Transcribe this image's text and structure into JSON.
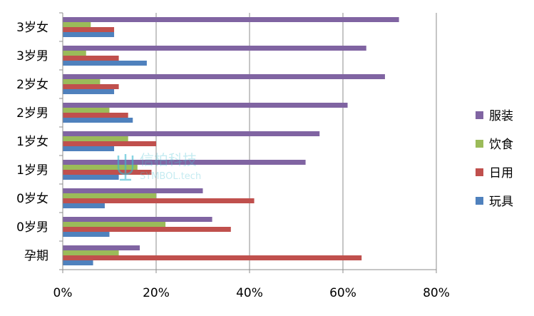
{
  "chart_data": {
    "type": "bar",
    "orientation": "horizontal",
    "categories": [
      "3岁女",
      "3岁男",
      "2岁女",
      "2岁男",
      "1岁女",
      "1岁男",
      "0岁女",
      "0岁男",
      "孕期"
    ],
    "series": [
      {
        "name": "服装",
        "color": "#8064a2",
        "values": [
          72,
          65,
          69,
          61,
          55,
          52,
          30,
          32,
          16.5
        ]
      },
      {
        "name": "饮食",
        "color": "#9bbb59",
        "values": [
          6,
          5,
          8,
          10,
          14,
          16,
          20,
          22,
          12
        ]
      },
      {
        "name": "日用",
        "color": "#c0504d",
        "values": [
          11,
          12,
          12,
          14,
          20,
          19,
          41,
          36,
          64
        ]
      },
      {
        "name": "玩具",
        "color": "#4f81bd",
        "values": [
          11,
          18,
          11,
          15,
          11,
          12,
          9,
          10,
          6.5
        ]
      }
    ],
    "xlim": [
      0,
      80
    ],
    "xticks": [
      "0%",
      "20%",
      "40%",
      "60%",
      "80%"
    ],
    "grid": true,
    "legend": "right",
    "title": "",
    "xlabel": "",
    "ylabel": ""
  },
  "watermark": {
    "line1": "信柏科技",
    "line2": "SYMBOL.tech",
    "icon": "trident-logo-icon"
  }
}
